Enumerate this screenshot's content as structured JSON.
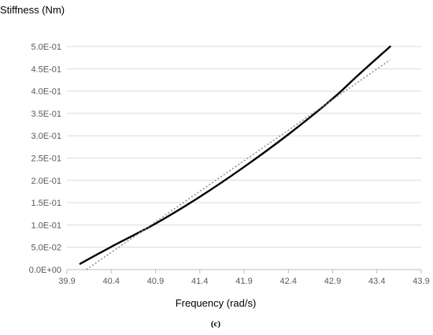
{
  "chart_data": {
    "type": "line",
    "title": "",
    "ylabel": "Stiffness (Nm)",
    "xlabel": "Frequency (rad/s)",
    "caption": "(c)",
    "xlim": [
      39.9,
      43.9
    ],
    "ylim": [
      0,
      0.5
    ],
    "x_ticks": [
      "39.9",
      "40.4",
      "40.9",
      "41.4",
      "41.9",
      "42.4",
      "42.9",
      "43.4",
      "43.9"
    ],
    "y_ticks": [
      "0.0E+00",
      "5.0E-02",
      "1.0E-01",
      "1.5E-01",
      "2.0E-01",
      "2.5E-01",
      "3.0E-01",
      "3.5E-01",
      "4.0E-01",
      "4.5E-01",
      "5.0E-01"
    ],
    "grid": "horizontal",
    "legend": "none",
    "series": [
      {
        "style": "solid",
        "color": "#000000",
        "points": [
          [
            40.05,
            0.013
          ],
          [
            40.4,
            0.051
          ],
          [
            40.9,
            0.103
          ],
          [
            41.4,
            0.163
          ],
          [
            41.9,
            0.23
          ],
          [
            42.4,
            0.303
          ],
          [
            42.9,
            0.383
          ],
          [
            43.2,
            0.438
          ],
          [
            43.55,
            0.5
          ]
        ]
      },
      {
        "style": "dotted",
        "color": "#8c8c8c",
        "points": [
          [
            40.12,
            0.0
          ],
          [
            43.55,
            0.47
          ]
        ]
      }
    ],
    "colors": {
      "grid": "#d9d9d9",
      "axis": "#bfbfbf"
    }
  }
}
